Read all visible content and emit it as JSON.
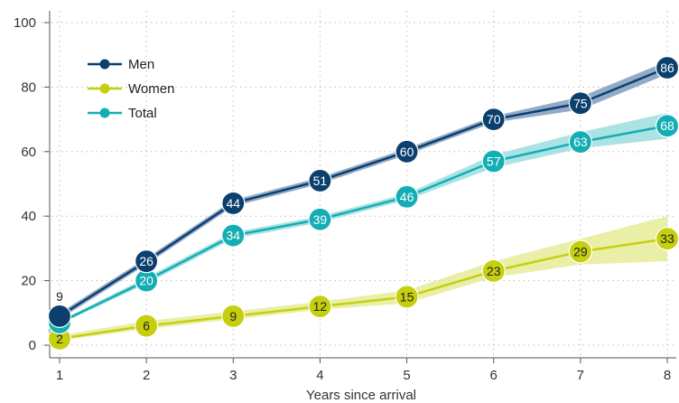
{
  "chart_data": {
    "type": "line",
    "title": "",
    "xlabel": "Years since arrival",
    "ylabel": "",
    "x": [
      1,
      2,
      3,
      4,
      5,
      6,
      7,
      8
    ],
    "xlim": [
      1,
      8
    ],
    "ylim": [
      0,
      100
    ],
    "yticks": [
      0,
      20,
      40,
      60,
      80,
      100
    ],
    "grid": true,
    "legend_position": "top-left",
    "series": [
      {
        "name": "Men",
        "color": "#0b3f6e",
        "band_color": "#6d8fb3",
        "values": [
          9,
          26,
          44,
          51,
          60,
          70,
          75,
          86
        ],
        "lower": [
          8,
          25,
          43,
          50,
          59,
          69,
          73,
          84
        ],
        "upper": [
          10,
          27,
          45,
          52,
          61,
          71,
          77,
          88
        ],
        "labels": [
          "9",
          "26",
          "44",
          "51",
          "60",
          "70",
          "75",
          "86"
        ]
      },
      {
        "name": "Women",
        "color": "#c5cf0e",
        "band_color": "#e3e98a",
        "values": [
          2,
          6,
          9,
          12,
          15,
          23,
          29,
          33
        ],
        "lower": [
          1.5,
          5,
          8,
          11,
          13,
          21,
          25,
          26
        ],
        "upper": [
          3,
          7.5,
          10.5,
          13.5,
          17,
          26,
          33,
          40
        ],
        "labels": [
          "2",
          "6",
          "9",
          "12",
          "15",
          "23",
          "29",
          "33"
        ]
      },
      {
        "name": "Total",
        "color": "#12aeb3",
        "band_color": "#8fd8da",
        "values": [
          7,
          20,
          34,
          39,
          46,
          57,
          63,
          68
        ],
        "lower": [
          6.5,
          19,
          33,
          38,
          45,
          55,
          61,
          64
        ],
        "upper": [
          7.5,
          21,
          35,
          40,
          47,
          59,
          66,
          72
        ],
        "labels": [
          "7",
          "20",
          "34",
          "39",
          "46",
          "57",
          "63",
          "68"
        ]
      }
    ]
  }
}
